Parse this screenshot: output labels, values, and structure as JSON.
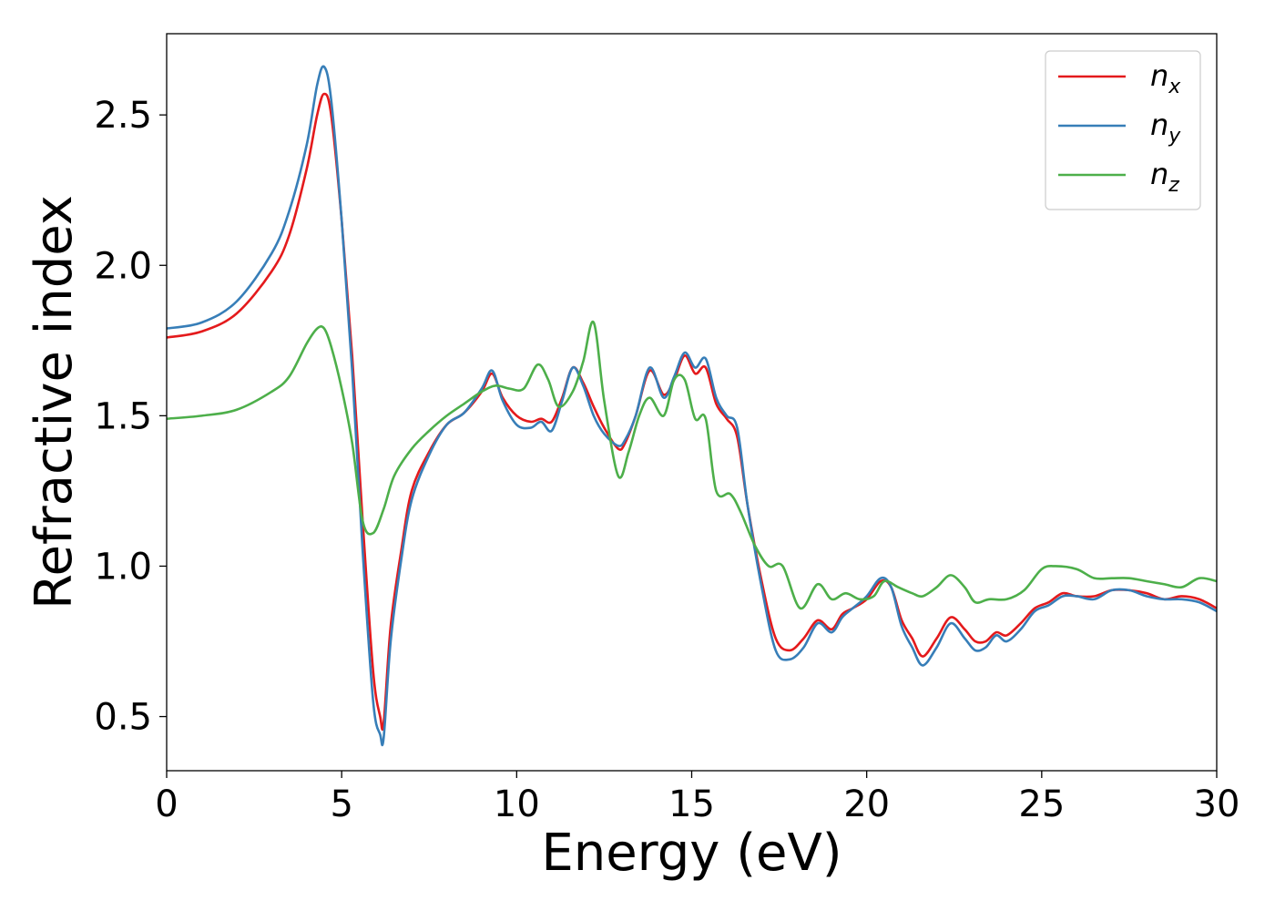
{
  "chart_data": {
    "type": "line",
    "title": "",
    "xlabel": "Energy (eV)",
    "ylabel": "Refractive index",
    "xlim": [
      0,
      30
    ],
    "ylim": [
      0.32,
      2.77
    ],
    "xticks": [
      0,
      5,
      10,
      15,
      20,
      25,
      30
    ],
    "xtick_labels": [
      "0",
      "5",
      "10",
      "15",
      "20",
      "25",
      "30"
    ],
    "yticks": [
      0.5,
      1.0,
      1.5,
      2.0,
      2.5
    ],
    "ytick_labels": [
      "0.5",
      "1.0",
      "1.5",
      "2.0",
      "2.5"
    ],
    "grid": false,
    "legend_position": "top-right",
    "series": [
      {
        "name": "n_x",
        "label_base": "n",
        "label_sub": "x",
        "color": "#e41a1c",
        "x": [
          0,
          1,
          2,
          3,
          3.5,
          4,
          4.3,
          4.5,
          4.7,
          5,
          5.3,
          5.6,
          5.9,
          6.1,
          6.2,
          6.4,
          6.7,
          7,
          7.5,
          8,
          8.5,
          9,
          9.3,
          9.6,
          10,
          10.4,
          10.7,
          11,
          11.3,
          11.6,
          11.9,
          12.2,
          12.5,
          12.9,
          13.1,
          13.4,
          13.8,
          14.2,
          14.5,
          14.8,
          15.1,
          15.4,
          15.7,
          16,
          16.3,
          16.6,
          17,
          17.4,
          17.8,
          18.2,
          18.6,
          19,
          19.3,
          19.6,
          20,
          20.4,
          20.7,
          21,
          21.3,
          21.6,
          22,
          22.4,
          22.8,
          23.1,
          23.4,
          23.7,
          24,
          24.4,
          24.8,
          25.2,
          25.6,
          26,
          26.5,
          27,
          27.5,
          28,
          28.5,
          29,
          29.5,
          30
        ],
        "y": [
          1.76,
          1.78,
          1.84,
          1.98,
          2.1,
          2.32,
          2.5,
          2.57,
          2.5,
          2.15,
          1.7,
          1.15,
          0.65,
          0.5,
          0.48,
          0.8,
          1.05,
          1.25,
          1.38,
          1.47,
          1.51,
          1.58,
          1.64,
          1.56,
          1.5,
          1.48,
          1.49,
          1.48,
          1.56,
          1.66,
          1.61,
          1.53,
          1.46,
          1.39,
          1.41,
          1.5,
          1.65,
          1.57,
          1.62,
          1.7,
          1.64,
          1.66,
          1.54,
          1.49,
          1.43,
          1.2,
          0.95,
          0.76,
          0.72,
          0.76,
          0.82,
          0.79,
          0.84,
          0.86,
          0.89,
          0.95,
          0.93,
          0.82,
          0.76,
          0.7,
          0.76,
          0.83,
          0.79,
          0.75,
          0.75,
          0.78,
          0.77,
          0.81,
          0.86,
          0.88,
          0.91,
          0.9,
          0.9,
          0.92,
          0.92,
          0.91,
          0.89,
          0.9,
          0.89,
          0.86
        ]
      },
      {
        "name": "n_y",
        "label_base": "n",
        "label_sub": "y",
        "color": "#377eb8",
        "x": [
          0,
          1,
          2,
          3,
          3.5,
          4,
          4.3,
          4.5,
          4.7,
          5,
          5.3,
          5.6,
          5.9,
          6.1,
          6.2,
          6.4,
          6.7,
          7,
          7.5,
          8,
          8.5,
          9,
          9.3,
          9.6,
          10,
          10.4,
          10.7,
          11,
          11.3,
          11.6,
          11.9,
          12.2,
          12.5,
          12.9,
          13.1,
          13.4,
          13.8,
          14.2,
          14.5,
          14.8,
          15.1,
          15.4,
          15.7,
          16,
          16.3,
          16.6,
          17,
          17.4,
          17.8,
          18.2,
          18.6,
          19,
          19.3,
          19.6,
          20,
          20.4,
          20.7,
          21,
          21.3,
          21.6,
          22,
          22.4,
          22.8,
          23.1,
          23.4,
          23.7,
          24,
          24.4,
          24.8,
          25.2,
          25.6,
          26,
          26.5,
          27,
          27.5,
          28,
          28.5,
          29,
          29.5,
          30
        ],
        "y": [
          1.79,
          1.81,
          1.88,
          2.04,
          2.18,
          2.4,
          2.6,
          2.66,
          2.55,
          2.15,
          1.65,
          1.05,
          0.55,
          0.44,
          0.43,
          0.75,
          1.02,
          1.22,
          1.37,
          1.47,
          1.51,
          1.59,
          1.65,
          1.55,
          1.47,
          1.46,
          1.48,
          1.45,
          1.55,
          1.66,
          1.6,
          1.5,
          1.44,
          1.4,
          1.42,
          1.5,
          1.66,
          1.56,
          1.63,
          1.71,
          1.66,
          1.69,
          1.56,
          1.5,
          1.46,
          1.2,
          0.93,
          0.72,
          0.69,
          0.73,
          0.81,
          0.78,
          0.83,
          0.86,
          0.9,
          0.96,
          0.93,
          0.8,
          0.73,
          0.67,
          0.73,
          0.81,
          0.76,
          0.72,
          0.73,
          0.77,
          0.75,
          0.79,
          0.85,
          0.87,
          0.9,
          0.9,
          0.89,
          0.92,
          0.92,
          0.9,
          0.89,
          0.89,
          0.88,
          0.85
        ]
      },
      {
        "name": "n_z",
        "label_base": "n",
        "label_sub": "z",
        "color": "#4daf4a",
        "x": [
          0,
          1,
          2,
          3,
          3.5,
          4,
          4.3,
          4.5,
          4.7,
          5,
          5.3,
          5.6,
          5.9,
          6.2,
          6.5,
          7,
          7.5,
          8,
          8.5,
          9,
          9.4,
          9.8,
          10.2,
          10.6,
          10.9,
          11.2,
          11.6,
          11.9,
          12.2,
          12.5,
          12.9,
          13.2,
          13.5,
          13.8,
          14.2,
          14.5,
          14.8,
          15.1,
          15.4,
          15.7,
          16.1,
          16.4,
          16.8,
          17.2,
          17.6,
          18.1,
          18.6,
          19,
          19.4,
          19.8,
          20.2,
          20.5,
          20.9,
          21.3,
          21.6,
          22,
          22.4,
          22.8,
          23.1,
          23.5,
          24,
          24.5,
          25,
          25.4,
          26,
          26.5,
          27,
          27.5,
          28,
          28.5,
          29,
          29.5,
          30
        ],
        "y": [
          1.49,
          1.5,
          1.52,
          1.58,
          1.63,
          1.74,
          1.79,
          1.79,
          1.73,
          1.59,
          1.41,
          1.15,
          1.11,
          1.19,
          1.3,
          1.39,
          1.45,
          1.5,
          1.54,
          1.58,
          1.6,
          1.59,
          1.59,
          1.67,
          1.62,
          1.53,
          1.58,
          1.68,
          1.81,
          1.55,
          1.3,
          1.38,
          1.5,
          1.56,
          1.5,
          1.62,
          1.62,
          1.49,
          1.49,
          1.25,
          1.24,
          1.18,
          1.07,
          1.0,
          1.0,
          0.86,
          0.94,
          0.89,
          0.91,
          0.89,
          0.9,
          0.95,
          0.93,
          0.91,
          0.9,
          0.93,
          0.97,
          0.93,
          0.88,
          0.89,
          0.89,
          0.92,
          0.99,
          1.0,
          0.99,
          0.96,
          0.96,
          0.96,
          0.95,
          0.94,
          0.93,
          0.96,
          0.95
        ]
      }
    ]
  }
}
